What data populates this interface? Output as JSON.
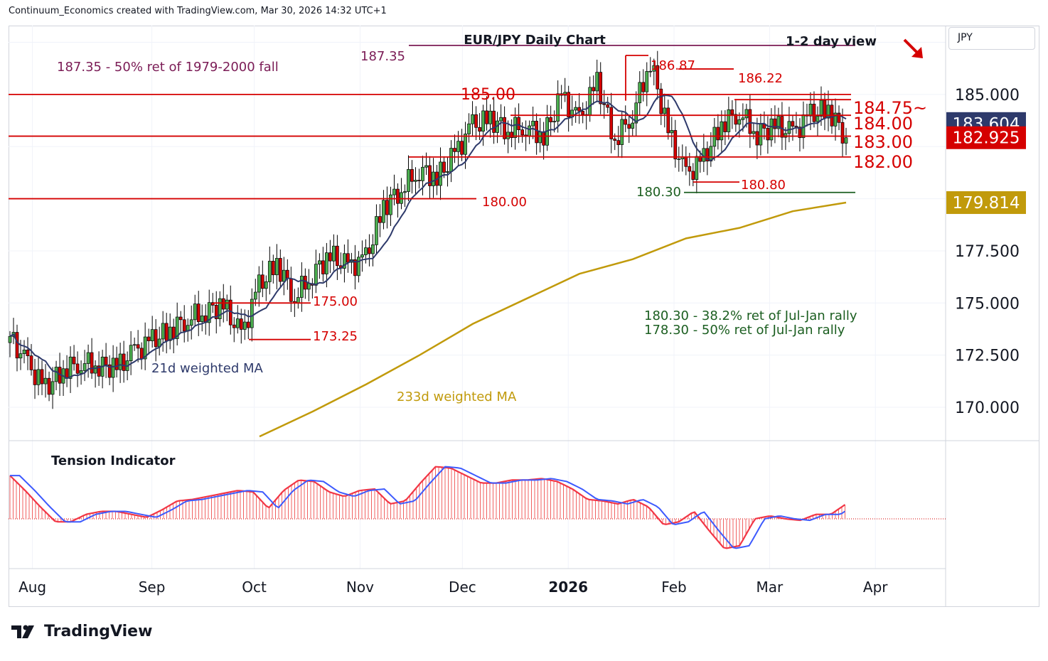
{
  "header": "Continuum_Economics created with TradingView.com, Mar 30, 2026 14:32 UTC+1",
  "currency": "JPY",
  "brand": "TradingView",
  "chart_data": {
    "type": "candlestick",
    "title": "EUR/JPY Daily Chart",
    "subtitle": "1-2 day view",
    "view_arrow": "down-right",
    "y_ticks": [
      170.0,
      172.5,
      175.0,
      177.5,
      185.0
    ],
    "y_tick_labels": [
      "170.000",
      "172.500",
      "175.000",
      "177.500",
      "185.000"
    ],
    "ylim": [
      168.4,
      188.3
    ],
    "x_tick_labels": [
      "Aug",
      "Sep",
      "Oct",
      "Nov",
      "Dec",
      "2026",
      "Feb",
      "Mar",
      "Apr"
    ],
    "x_tick_dates": [
      "2025-07-28",
      "2025-09-01",
      "2025-10-01",
      "2025-11-01",
      "2025-12-01",
      "2026-01-01",
      "2026-02-01",
      "2026-03-01",
      "2026-04-01"
    ],
    "price_badges": [
      {
        "label": "183.604",
        "value": 183.604,
        "color": "#2e3a6b"
      },
      {
        "label": "182.925",
        "value": 182.925,
        "color": "#d50000"
      },
      {
        "label": "179.814",
        "value": 179.814,
        "color": "#c19a0b"
      }
    ],
    "levels": [
      {
        "label": "187.35",
        "value": 187.35,
        "color": "#7b1c56"
      },
      {
        "label": "185.00",
        "value": 185.0,
        "color": "#d50000"
      },
      {
        "label": "184.75~",
        "value": 184.75,
        "color": "#d50000"
      },
      {
        "label": "184.00",
        "value": 184.0,
        "color": "#d50000"
      },
      {
        "label": "183.00",
        "value": 183.0,
        "color": "#d50000"
      },
      {
        "label": "182.00",
        "value": 182.0,
        "color": "#d50000"
      },
      {
        "label": "180.80",
        "value": 180.8,
        "color": "#d50000"
      },
      {
        "label": "180.30",
        "value": 180.3,
        "color": "#1b5e20"
      },
      {
        "label": "180.00",
        "value": 180.0,
        "color": "#d50000"
      },
      {
        "label": "175.00",
        "value": 175.0,
        "color": "#d50000"
      },
      {
        "label": "173.25",
        "value": 173.25,
        "color": "#d50000"
      },
      {
        "label": "186.87",
        "value": 186.87,
        "color": "#d50000"
      },
      {
        "label": "186.22",
        "value": 186.22,
        "color": "#d50000"
      }
    ],
    "annotations": [
      {
        "text": "187.35 - 50% ret of 1979-2000 fall",
        "color": "#7b1c56"
      },
      {
        "text": "180.30 - 38.2% ret of Jul-Jan rally",
        "color": "#1b5e20"
      },
      {
        "text": "178.30 - 50% ret of Jul-Jan rally",
        "color": "#1b5e20"
      },
      {
        "text": "21d weighted MA",
        "color": "#2e3a6b"
      },
      {
        "text": "233d weighted MA",
        "color": "#c19a0b"
      }
    ],
    "ma233": {
      "name": "233d weighted MA",
      "values": [
        168.6,
        169.8,
        171.1,
        172.5,
        174.0,
        175.2,
        176.4,
        177.1,
        178.1,
        178.6,
        179.4,
        179.814
      ]
    },
    "closes": [
      173.4,
      172.0,
      170.9,
      171.8,
      172.2,
      172.0,
      171.9,
      172.6,
      173.2,
      173.7,
      174.3,
      174.6,
      174.9,
      173.4,
      175.8,
      176.9,
      175.3,
      176.4,
      177.3,
      176.7,
      177.1,
      179.6,
      180.5,
      181.4,
      181.0,
      182.1,
      183.5,
      183.8,
      183.3,
      183.5,
      183.0,
      184.9,
      183.7,
      185.6,
      182.8,
      184.1,
      186.6,
      183.2,
      181.1,
      181.9,
      183.6,
      184.2,
      183.1,
      183.5,
      183.1,
      184.0,
      184.3,
      182.925
    ],
    "tension": {
      "label": "Tension Indicator",
      "values": [
        2.9,
        1.9,
        0.8,
        -0.2,
        -0.2,
        0.3,
        0.5,
        0.5,
        0.3,
        0.1,
        0.6,
        1.2,
        1.3,
        1.5,
        1.7,
        1.9,
        1.8,
        0.7,
        1.9,
        2.6,
        2.5,
        1.8,
        1.5,
        1.9,
        2.0,
        1.0,
        1.2,
        2.4,
        3.5,
        3.4,
        2.9,
        2.4,
        2.4,
        2.6,
        2.6,
        2.7,
        2.5,
        2.0,
        1.3,
        1.2,
        1.0,
        1.3,
        0.8,
        -0.4,
        -0.2,
        0.5,
        -0.8,
        -2.0,
        -1.8,
        0.0,
        0.2,
        0.0,
        -0.1,
        0.3,
        0.3,
        1.0
      ]
    }
  }
}
